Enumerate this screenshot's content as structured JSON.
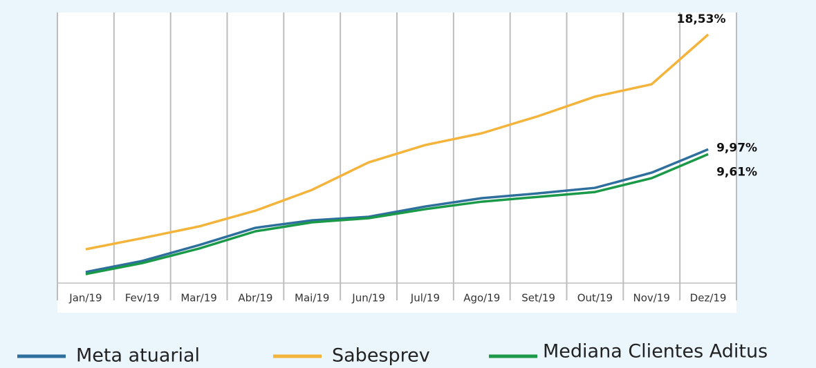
{
  "chart_data": {
    "type": "line",
    "categories": [
      "Jan/19",
      "Fev/19",
      "Mar/19",
      "Abr/19",
      "Mai/19",
      "Jun/19",
      "Jul/19",
      "Ago/19",
      "Set/19",
      "Out/19",
      "Nov/19",
      "Dez/19"
    ],
    "series": [
      {
        "name": "Meta atuarial",
        "color": "#2e6f9e",
        "values": [
          0.82,
          1.65,
          2.83,
          4.12,
          4.68,
          4.94,
          5.71,
          6.33,
          6.69,
          7.1,
          8.23,
          9.97
        ],
        "value_labels": [
          null,
          null,
          null,
          null,
          null,
          null,
          null,
          null,
          null,
          null,
          null,
          "9,97%"
        ]
      },
      {
        "name": "Sabesprev",
        "color": "#f4b43c",
        "values": [
          2.52,
          3.35,
          4.22,
          5.4,
          6.95,
          9.0,
          10.29,
          11.17,
          12.45,
          13.9,
          14.82,
          18.53
        ],
        "value_labels": [
          null,
          null,
          null,
          null,
          null,
          null,
          null,
          null,
          null,
          null,
          null,
          "18,53%"
        ]
      },
      {
        "name": "Mediana Clientes Aditus",
        "color": "#1a9a48",
        "values": [
          0.67,
          1.49,
          2.57,
          3.86,
          4.53,
          4.84,
          5.51,
          6.07,
          6.43,
          6.79,
          7.82,
          9.61
        ],
        "value_labels": [
          null,
          null,
          null,
          null,
          null,
          null,
          null,
          null,
          null,
          null,
          null,
          "9,61%"
        ]
      }
    ],
    "grid": true
  }
}
